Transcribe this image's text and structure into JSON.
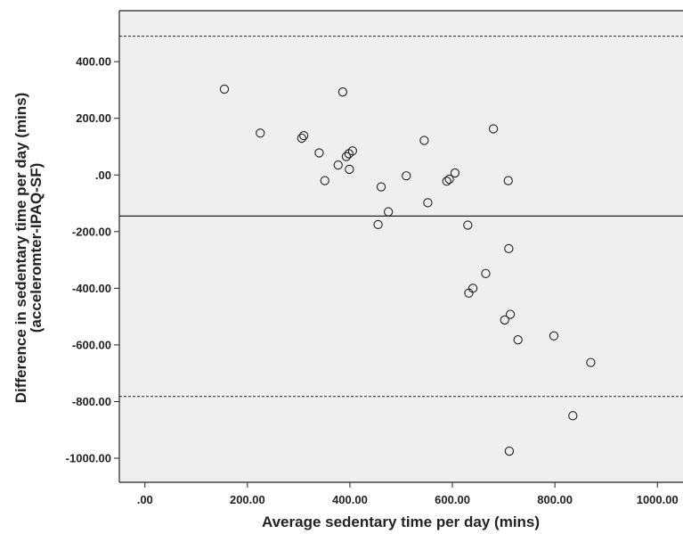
{
  "chart_data": {
    "type": "scatter",
    "xlabel": "Average sedentary time per day (mins)",
    "ylabel_lines": [
      "Difference in sedentary time per day (mins)",
      "(acceleromter-IPAQ-SF)"
    ],
    "xlim": [
      -50,
      1050
    ],
    "ylim": [
      -1085,
      580
    ],
    "x_ticks": [
      0,
      200,
      400,
      600,
      800,
      1000
    ],
    "x_tick_labels": [
      ".00",
      "200.00",
      "400.00",
      "600.00",
      "800.00",
      "1000.00"
    ],
    "y_ticks": [
      400,
      200,
      0,
      -200,
      -400,
      -600,
      -800,
      -1000
    ],
    "y_tick_labels": [
      "400.00",
      "200.00",
      ".00",
      "-200.00",
      "-400.00",
      "-600.00",
      "-800.00",
      "-1000.00"
    ],
    "grid": false,
    "reference_lines": [
      {
        "type": "upper-limit",
        "style": "dashed",
        "y": 490
      },
      {
        "type": "mean-difference",
        "style": "solid",
        "y": -145
      },
      {
        "type": "lower-limit",
        "style": "dashed",
        "y": -782
      }
    ],
    "points": [
      {
        "x": 155,
        "y": 303
      },
      {
        "x": 225,
        "y": 148
      },
      {
        "x": 306,
        "y": 130
      },
      {
        "x": 310,
        "y": 139
      },
      {
        "x": 340,
        "y": 78
      },
      {
        "x": 351,
        "y": -20
      },
      {
        "x": 377,
        "y": 35
      },
      {
        "x": 386,
        "y": 293
      },
      {
        "x": 393,
        "y": 65
      },
      {
        "x": 398,
        "y": 75
      },
      {
        "x": 399,
        "y": 20
      },
      {
        "x": 405,
        "y": 85
      },
      {
        "x": 455,
        "y": -175
      },
      {
        "x": 461,
        "y": -42
      },
      {
        "x": 475,
        "y": -130
      },
      {
        "x": 510,
        "y": -3
      },
      {
        "x": 545,
        "y": 122
      },
      {
        "x": 552,
        "y": -98
      },
      {
        "x": 589,
        "y": -22
      },
      {
        "x": 594,
        "y": -15
      },
      {
        "x": 605,
        "y": 7
      },
      {
        "x": 630,
        "y": -177
      },
      {
        "x": 632,
        "y": -417
      },
      {
        "x": 640,
        "y": -400
      },
      {
        "x": 665,
        "y": -348
      },
      {
        "x": 680,
        "y": 163
      },
      {
        "x": 702,
        "y": -512
      },
      {
        "x": 709,
        "y": -20
      },
      {
        "x": 710,
        "y": -260
      },
      {
        "x": 713,
        "y": -492
      },
      {
        "x": 711,
        "y": -975
      },
      {
        "x": 728,
        "y": -582
      },
      {
        "x": 798,
        "y": -568
      },
      {
        "x": 835,
        "y": -850
      },
      {
        "x": 870,
        "y": -662
      }
    ]
  }
}
